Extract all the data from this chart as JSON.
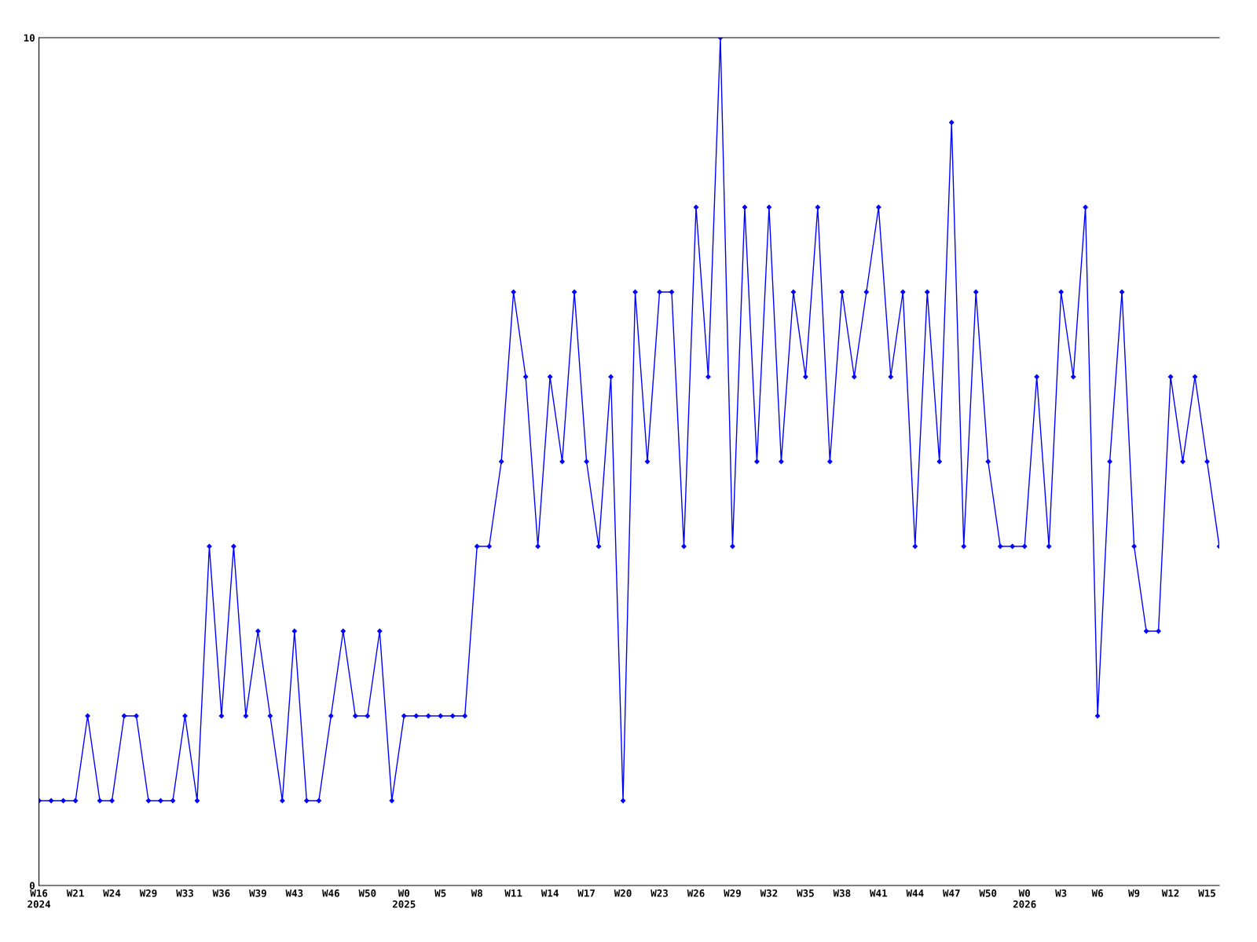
{
  "chart_data": {
    "type": "line",
    "color": "#0000ff",
    "marker": "diamond",
    "line_style": "solid",
    "grid": false,
    "ylim": [
      0,
      10
    ],
    "yticks": [
      0,
      10
    ],
    "categories": [
      "W16\n2024",
      null,
      null,
      "W21",
      null,
      null,
      "W24",
      null,
      null,
      "W29",
      null,
      null,
      "W33",
      null,
      null,
      "W36",
      null,
      null,
      "W39",
      null,
      null,
      "W43",
      null,
      null,
      "W46",
      null,
      null,
      "W50",
      null,
      null,
      "W0\n2025",
      null,
      null,
      "W5",
      null,
      null,
      "W8",
      null,
      null,
      "W11",
      null,
      null,
      "W14",
      null,
      null,
      "W17",
      null,
      null,
      "W20",
      null,
      null,
      "W23",
      null,
      null,
      "W26",
      null,
      null,
      "W29",
      null,
      null,
      "W32",
      null,
      null,
      "W35",
      null,
      null,
      "W38",
      null,
      null,
      "W41",
      null,
      null,
      "W44",
      null,
      null,
      "W47",
      null,
      null,
      "W50",
      null,
      null,
      "W0\n2026",
      null,
      null,
      "W3",
      null,
      null,
      "W6",
      null,
      null,
      "W9",
      null,
      null,
      "W12",
      null,
      null,
      "W15",
      null
    ],
    "values": [
      1,
      1,
      1,
      1,
      2,
      1,
      1,
      2,
      2,
      1,
      1,
      1,
      2,
      1,
      4,
      2,
      4,
      2,
      3,
      2,
      1,
      3,
      1,
      1,
      2,
      3,
      2,
      2,
      3,
      1,
      2,
      2,
      2,
      2,
      2,
      2,
      4,
      4,
      5,
      7,
      6,
      4,
      6,
      5,
      7,
      5,
      4,
      6,
      1,
      7,
      5,
      7,
      7,
      4,
      8,
      6,
      10,
      4,
      8,
      5,
      8,
      5,
      7,
      6,
      8,
      5,
      7,
      6,
      7,
      8,
      6,
      7,
      4,
      7,
      5,
      9,
      4,
      7,
      5,
      4,
      4,
      4,
      6,
      4,
      7,
      6,
      8,
      2,
      5,
      7,
      4,
      3,
      3,
      6,
      5,
      6,
      5,
      4
    ]
  }
}
